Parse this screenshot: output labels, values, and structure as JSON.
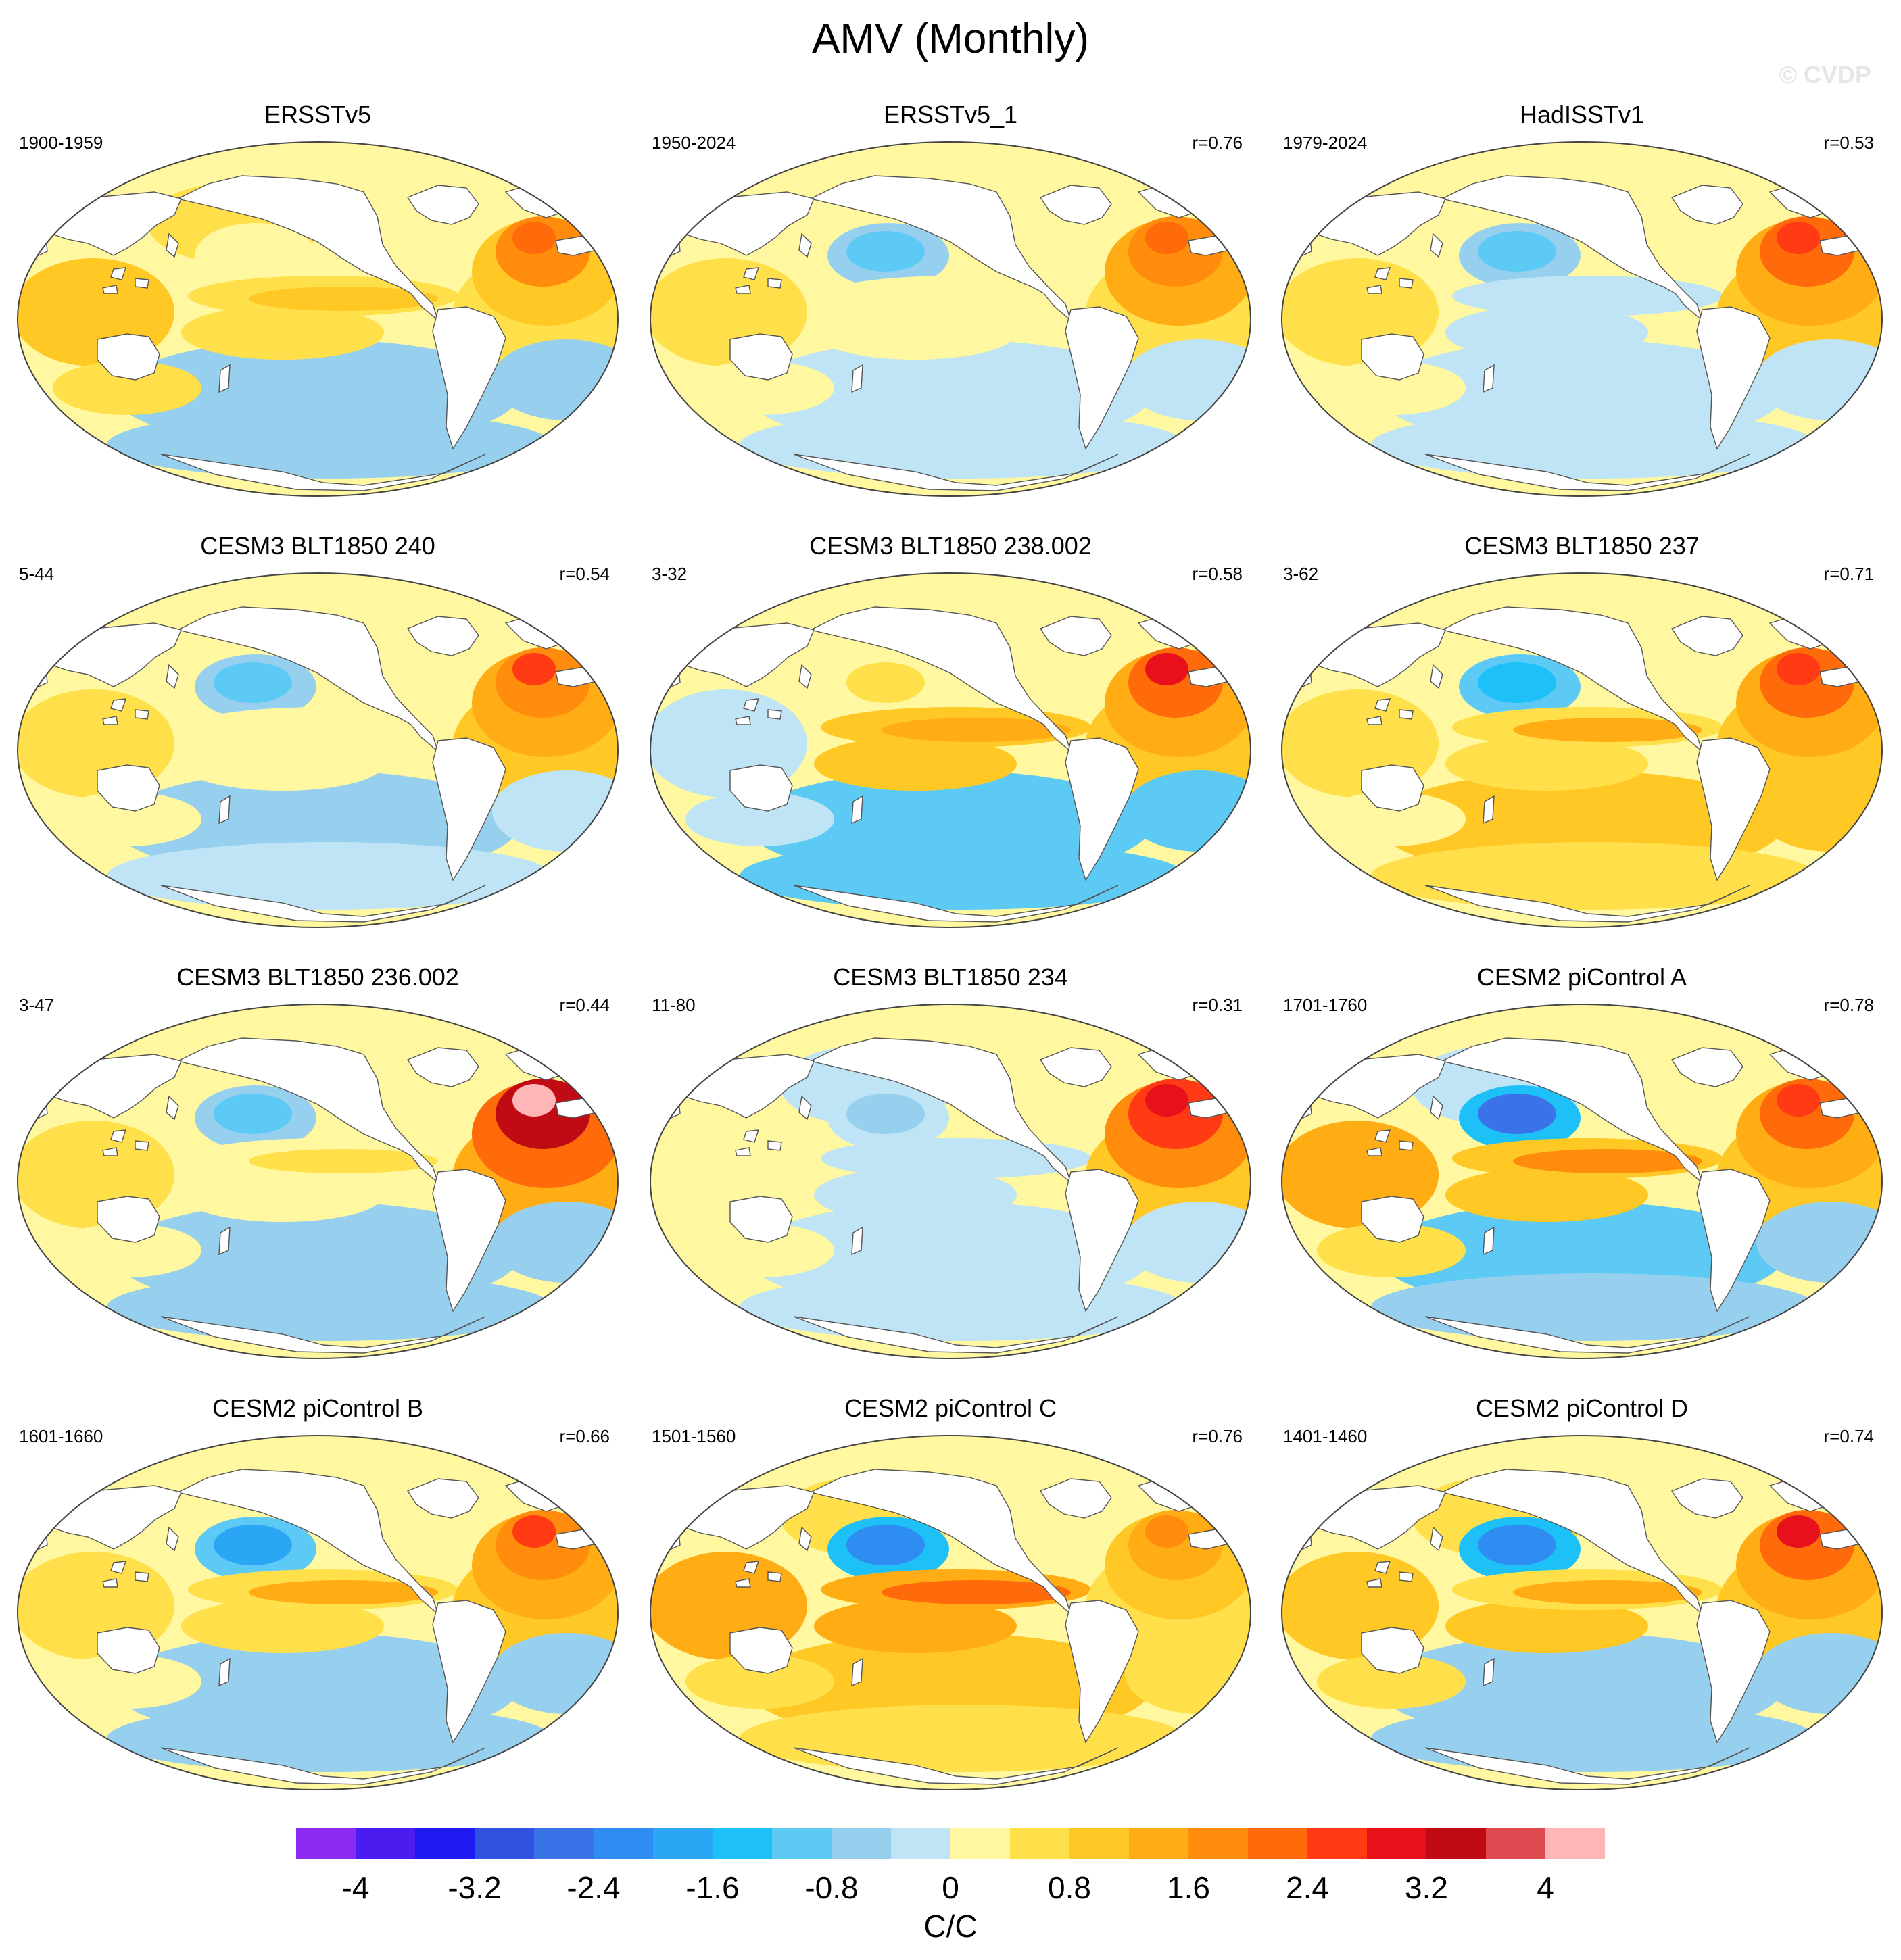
{
  "title": "AMV (Monthly)",
  "watermark": "© CVDP",
  "units": "C/C",
  "colors": {
    "scale": [
      "#8b2af0",
      "#4a1cf0",
      "#1e1af0",
      "#2f52e0",
      "#3a72e8",
      "#2f8cf0",
      "#2aa6f5",
      "#1ec0f8",
      "#5ccaf5",
      "#96d0ee",
      "#bee4f5",
      "#fff8a0",
      "#ffe04a",
      "#ffc825",
      "#ffac15",
      "#ff8c0c",
      "#ff6a0a",
      "#ff3a14",
      "#e8101a",
      "#c00a14",
      "#de4a50",
      "#ffb6b6"
    ],
    "land": "#ffffff",
    "coast": "#555555"
  },
  "colorbar": {
    "levels": [
      "-4.4",
      "-4",
      "-3.6",
      "-3.2",
      "-2.8",
      "-2.4",
      "-2",
      "-1.6",
      "-1.2",
      "-0.8",
      "-0.4",
      "0",
      "0.4",
      "0.8",
      "1.2",
      "1.6",
      "2",
      "2.4",
      "2.8",
      "3.2",
      "3.6",
      "4",
      "4.4"
    ],
    "labels": [
      "-4",
      "-3.2",
      "-2.4",
      "-1.6",
      "-0.8",
      "0",
      "0.8",
      "1.6",
      "2.4",
      "3.2",
      "4"
    ]
  },
  "panels": [
    {
      "title": "ERSSTv5",
      "period": "1900-1959",
      "corr": "",
      "pattern": {
        "pdo": 0.3,
        "enso": 1.0,
        "natl": 2.0,
        "south": -0.6,
        "npac": 0.4,
        "indian": 0.9
      }
    },
    {
      "title": "ERSSTv5_1",
      "period": "1950-2024",
      "corr": "r=0.76",
      "pattern": {
        "pdo": -1.0,
        "enso": 0.2,
        "natl": 2.2,
        "south": -0.3,
        "npac": 0.3,
        "indian": 0.6
      }
    },
    {
      "title": "HadISSTv1",
      "period": "1979-2024",
      "corr": "r=0.53",
      "pattern": {
        "pdo": -1.2,
        "enso": -0.3,
        "natl": 2.6,
        "south": -0.3,
        "npac": 0.2,
        "indian": 0.4
      }
    },
    {
      "title": "CESM3 BLT1850 240",
      "period": "5-44",
      "corr": "r=0.54",
      "pattern": {
        "pdo": -0.9,
        "enso": 0.2,
        "natl": 2.4,
        "south": -0.5,
        "npac": 0.2,
        "indian": 0.4
      }
    },
    {
      "title": "CESM3 BLT1850 238.002",
      "period": "3-32",
      "corr": "r=0.58",
      "pattern": {
        "pdo": 0.6,
        "enso": 1.5,
        "natl": 2.9,
        "south": -1.2,
        "npac": 0.3,
        "indian": -0.4
      }
    },
    {
      "title": "CESM3 BLT1850 237",
      "period": "3-62",
      "corr": "r=0.71",
      "pattern": {
        "pdo": -1.6,
        "enso": 1.2,
        "natl": 2.7,
        "south": 1.0,
        "npac": 0.3,
        "indian": 0.6
      }
    },
    {
      "title": "CESM3 BLT1850 236.002",
      "period": "3-47",
      "corr": "r=0.44",
      "pattern": {
        "pdo": -1.2,
        "enso": 0.4,
        "natl": 4.2,
        "south": -0.6,
        "npac": 0.2,
        "indian": 0.6
      }
    },
    {
      "title": "CESM3 BLT1850 234",
      "period": "11-80",
      "corr": "r=0.31",
      "pattern": {
        "pdo": -0.5,
        "enso": -0.4,
        "natl": 3.0,
        "south": -0.4,
        "npac": -0.3,
        "indian": 0.2
      }
    },
    {
      "title": "CESM2 piControl A",
      "period": "1701-1760",
      "corr": "r=0.78",
      "pattern": {
        "pdo": -2.6,
        "enso": 1.8,
        "natl": 2.6,
        "south": -1.0,
        "npac": -0.2,
        "indian": 1.2
      }
    },
    {
      "title": "CESM2 piControl B",
      "period": "1601-1660",
      "corr": "r=0.66",
      "pattern": {
        "pdo": -1.8,
        "enso": 1.2,
        "natl": 2.4,
        "south": -0.6,
        "npac": 0.3,
        "indian": 0.6
      }
    },
    {
      "title": "CESM2 piControl C",
      "period": "1501-1560",
      "corr": "r=0.76",
      "pattern": {
        "pdo": -2.2,
        "enso": 2.3,
        "natl": 1.8,
        "south": 0.8,
        "npac": 0.6,
        "indian": 1.5
      }
    },
    {
      "title": "CESM2 piControl D",
      "period": "1401-1460",
      "corr": "r=0.74",
      "pattern": {
        "pdo": -2.4,
        "enso": 1.4,
        "natl": 2.8,
        "south": -0.6,
        "npac": 0.4,
        "indian": 1.0
      }
    }
  ]
}
